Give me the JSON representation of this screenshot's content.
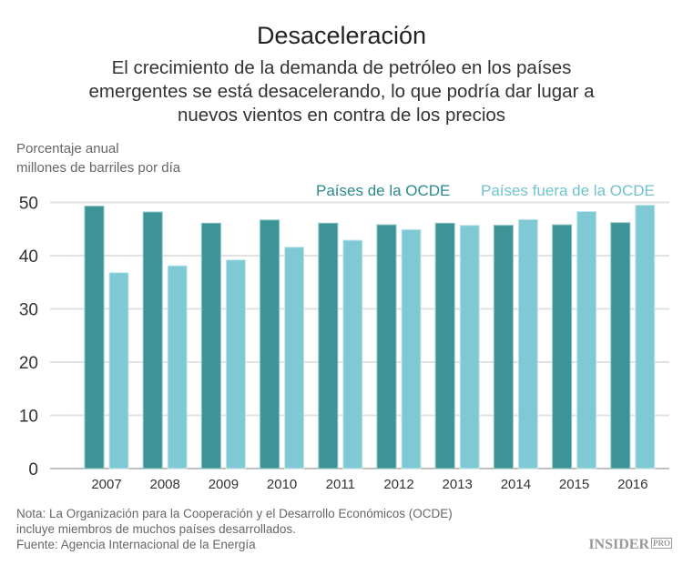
{
  "title": "Desaceleración",
  "subtitle": "El crecimiento de la demanda de petróleo en los países emergentes se está desacelerando, lo que podría dar lugar a nuevos vientos en contra de los precios",
  "ylabel_line1": "Porcentaje anual",
  "ylabel_line2": "millones de barriles por día",
  "note": [
    "Nota: La Organización para la Cooperación y el Desarrollo Económicos (OCDE)",
    "incluye miembros de muchos países desarrollados.",
    "Fuente: Agencia Internacional de la Energía"
  ],
  "logo": {
    "text": "INSIDER",
    "sup": "PRO"
  },
  "chart_data": {
    "type": "bar",
    "categories": [
      "2007",
      "2008",
      "2009",
      "2010",
      "2011",
      "2012",
      "2013",
      "2014",
      "2015",
      "2016"
    ],
    "series": [
      {
        "name": "Países de la OCDE",
        "color": "#3d9497",
        "values": [
          49.3,
          48.2,
          46.1,
          46.7,
          46.1,
          45.8,
          46.1,
          45.7,
          45.8,
          46.2
        ]
      },
      {
        "name": "Países fuera de la OCDE",
        "color": "#7ec9d3",
        "values": [
          36.8,
          38.1,
          39.2,
          41.6,
          42.9,
          44.9,
          45.7,
          46.8,
          48.3,
          49.5
        ]
      }
    ],
    "ylim": [
      0,
      50
    ],
    "yticks": [
      0,
      10,
      20,
      30,
      40,
      50
    ],
    "grid": true,
    "legend": "top-right"
  }
}
